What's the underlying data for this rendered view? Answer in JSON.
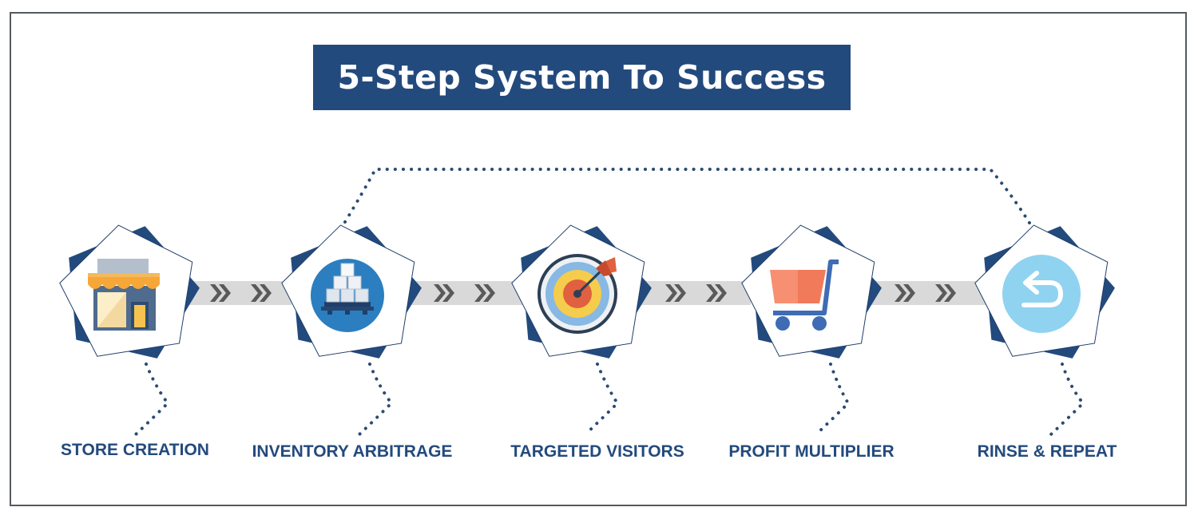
{
  "title": "5-Step System To Success",
  "colors": {
    "navy": "#234a7d",
    "dots": "#2b4a72",
    "connector": "#d9d9d9",
    "chevron": "#5a5a5a",
    "frame": "#555a60"
  },
  "steps": [
    {
      "label": "STORE CREATION",
      "icon": "store-icon"
    },
    {
      "label": "INVENTORY ARBITRAGE",
      "icon": "boxes-icon"
    },
    {
      "label": "TARGETED VISITORS",
      "icon": "target-icon"
    },
    {
      "label": "PROFIT MULTIPLIER",
      "icon": "cart-icon"
    },
    {
      "label": "RINSE & REPEAT",
      "icon": "repeat-icon"
    }
  ]
}
